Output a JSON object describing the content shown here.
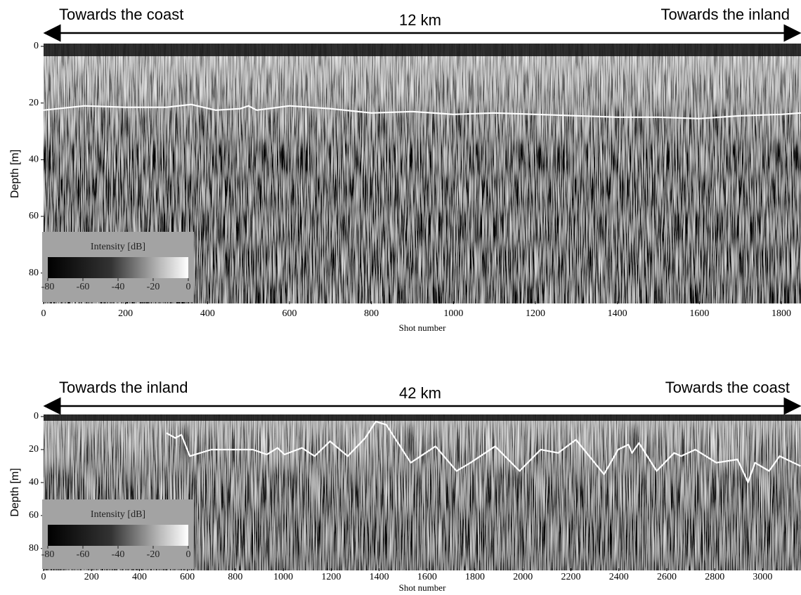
{
  "chart_data": [
    {
      "type": "line",
      "annotations": {
        "left": "Towards the coast",
        "center": "12 km",
        "right": "Towards the inland"
      },
      "x_label": "Shot number",
      "y_label": "Depth [m]",
      "xlim": [
        0,
        1848
      ],
      "ylim": [
        0,
        90
      ],
      "xticks": [
        0,
        200,
        400,
        600,
        800,
        1000,
        1200,
        1400,
        1600,
        1800
      ],
      "yticks": [
        0,
        20,
        40,
        60,
        80
      ],
      "x": [
        0,
        100,
        200,
        300,
        360,
        420,
        480,
        500,
        520,
        600,
        700,
        800,
        900,
        1000,
        1100,
        1200,
        1300,
        1400,
        1500,
        1600,
        1700,
        1800,
        1848
      ],
      "values": [
        22.5,
        21,
        21.5,
        21.5,
        20.5,
        22.5,
        22,
        21,
        22.5,
        21,
        22,
        23.5,
        23,
        24,
        23.5,
        24,
        24.5,
        25,
        25,
        25.5,
        24.5,
        24,
        23.5
      ],
      "color": "#ffffff",
      "colorbar": {
        "label": "Intensity [dB]",
        "lim": [
          -80,
          0
        ],
        "ticks": [
          -80,
          -60,
          -40,
          -20,
          0
        ]
      }
    },
    {
      "type": "line",
      "annotations": {
        "left": "Towards the inland",
        "center": "42 km",
        "right": "Towards the coast"
      },
      "x_label": "Shot number",
      "y_label": "Depth [m]",
      "xlim": [
        0,
        3160
      ],
      "ylim": [
        0,
        92
      ],
      "xticks": [
        0,
        200,
        400,
        600,
        800,
        1000,
        1200,
        1400,
        1600,
        1800,
        2000,
        2200,
        2400,
        2600,
        2800,
        3000
      ],
      "yticks": [
        0,
        20,
        40,
        60,
        80
      ],
      "x": [
        513,
        550,
        575,
        610,
        700,
        873,
        932,
        976,
        1005,
        1078,
        1131,
        1195,
        1269,
        1342,
        1386,
        1430,
        1532,
        1635,
        1723,
        1781,
        1884,
        1986,
        2074,
        2147,
        2221,
        2338,
        2397,
        2440,
        2455,
        2484,
        2558,
        2631,
        2660,
        2719,
        2807,
        2895,
        2924,
        2939,
        2968,
        3027,
        3071,
        3129,
        3158
      ],
      "values": [
        10,
        13,
        11,
        24,
        20,
        20,
        23,
        19,
        23,
        19,
        24,
        15,
        24,
        13,
        3,
        5,
        28,
        18,
        33,
        28,
        18,
        33,
        20,
        22,
        14,
        35,
        20,
        17,
        22,
        16,
        33,
        22,
        24,
        20,
        28,
        26,
        35,
        40,
        28,
        33,
        24,
        28,
        30
      ],
      "color": "#ffffff",
      "colorbar": {
        "label": "Intensity [dB]",
        "lim": [
          -80,
          0
        ],
        "ticks": [
          -80,
          -60,
          -40,
          -20,
          0
        ]
      }
    }
  ]
}
